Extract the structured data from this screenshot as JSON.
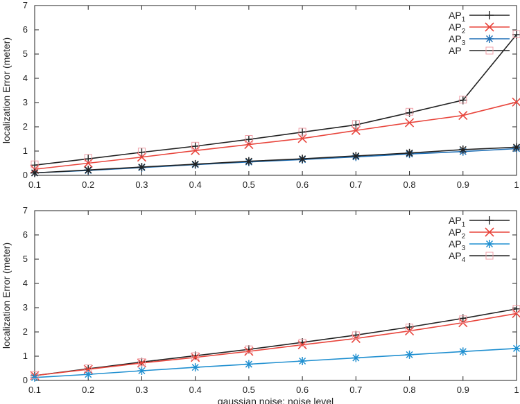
{
  "chart_data": [
    {
      "type": "line",
      "ylabel": "localization Error (meter)",
      "xlabel": "",
      "x": [
        0.1,
        0.2,
        0.3,
        0.4,
        0.5,
        0.6,
        0.7,
        0.8,
        0.9,
        1.0
      ],
      "x_tick_labels": [
        "0.1",
        "0.2",
        "0.3",
        "0.4",
        "0.5",
        "0.6",
        "0.7",
        "0.8",
        "0.9",
        "1"
      ],
      "ylim": [
        0,
        7
      ],
      "y_ticks": [
        0,
        1,
        2,
        3,
        4,
        5,
        6,
        7
      ],
      "legend_position": "top-right",
      "series": [
        {
          "name": "AP",
          "subscript": "1",
          "color": "#222222",
          "marker": "plus",
          "values": [
            0.42,
            0.68,
            0.95,
            1.2,
            1.48,
            1.78,
            2.08,
            2.58,
            3.1,
            5.8
          ]
        },
        {
          "name": "AP",
          "subscript": "2",
          "color": "#e8453c",
          "marker": "x",
          "values": [
            0.25,
            0.5,
            0.75,
            1.02,
            1.27,
            1.52,
            1.85,
            2.17,
            2.47,
            3.02
          ]
        },
        {
          "name": "AP",
          "subscript": "3",
          "color": "#1f6fb5",
          "marker": "star",
          "values": [
            0.1,
            0.2,
            0.32,
            0.44,
            0.55,
            0.65,
            0.76,
            0.88,
            0.98,
            1.1
          ]
        },
        {
          "name": "AP",
          "subscript": "",
          "color": "#f0a0a8",
          "marker": "square",
          "values": [
            0.45,
            0.72,
            0.98,
            1.22,
            1.5,
            1.8,
            2.12,
            2.62,
            3.12,
            5.82
          ]
        },
        {
          "name": "",
          "subscript": "",
          "color": "#222222",
          "marker": "star",
          "legend": false,
          "values": [
            0.1,
            0.22,
            0.34,
            0.46,
            0.58,
            0.68,
            0.8,
            0.92,
            1.06,
            1.16
          ]
        }
      ]
    },
    {
      "type": "line",
      "ylabel": "localization Error (meter)",
      "xlabel": "gaussian noise: noise level",
      "x": [
        0.1,
        0.2,
        0.3,
        0.4,
        0.5,
        0.6,
        0.7,
        0.8,
        0.9,
        1.0
      ],
      "x_tick_labels": [
        "0.1",
        "0.2",
        "0.3",
        "0.4",
        "0.5",
        "0.6",
        "0.7",
        "0.8",
        "0.9",
        "1"
      ],
      "ylim": [
        0,
        7
      ],
      "y_ticks": [
        0,
        1,
        2,
        3,
        4,
        5,
        6,
        7
      ],
      "legend_position": "top-right",
      "series": [
        {
          "name": "AP",
          "subscript": "1",
          "color": "#222222",
          "marker": "plus",
          "values": [
            0.2,
            0.48,
            0.76,
            1.02,
            1.28,
            1.57,
            1.87,
            2.2,
            2.56,
            2.95
          ]
        },
        {
          "name": "AP",
          "subscript": "2",
          "color": "#e8453c",
          "marker": "x",
          "values": [
            0.2,
            0.46,
            0.72,
            0.95,
            1.2,
            1.47,
            1.73,
            2.04,
            2.38,
            2.76
          ]
        },
        {
          "name": "AP",
          "subscript": "3",
          "color": "#1f8fd0",
          "marker": "star",
          "values": [
            0.12,
            0.25,
            0.4,
            0.54,
            0.67,
            0.8,
            0.93,
            1.06,
            1.19,
            1.32
          ]
        },
        {
          "name": "AP",
          "subscript": "4",
          "color": "#f0a0a8",
          "marker": "square",
          "values": [
            0.22,
            0.5,
            0.75,
            1.0,
            1.28,
            1.56,
            1.86,
            2.18,
            2.52,
            2.95
          ]
        }
      ]
    }
  ]
}
